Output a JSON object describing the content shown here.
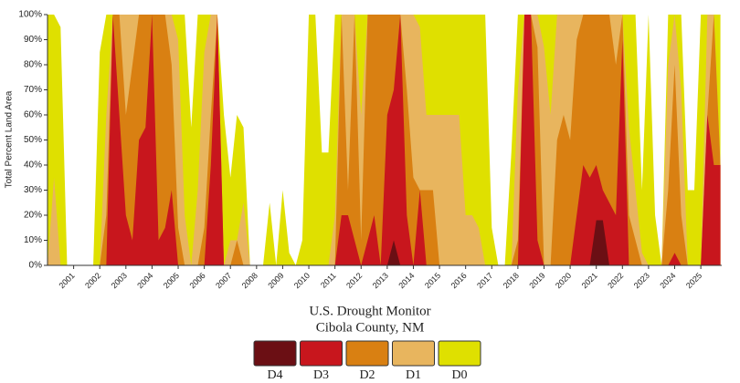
{
  "chart_data": {
    "type": "area",
    "title": "U.S. Drought Monitor",
    "subtitle": "Cibola County, NM",
    "y_label": "Total Percent Land Area",
    "xlim": [
      2000,
      2025.8
    ],
    "xticks": [
      2001,
      2002,
      2003,
      2004,
      2005,
      2006,
      2007,
      2008,
      2009,
      2010,
      2011,
      2012,
      2013,
      2014,
      2015,
      2016,
      2017,
      2018,
      2019,
      2020,
      2021,
      2022,
      2023,
      2024,
      2025
    ],
    "ylim": [
      0,
      100
    ],
    "yticks": [
      {
        "value": 0,
        "label": "0%"
      },
      {
        "value": 10,
        "label": "10%"
      },
      {
        "value": 20,
        "label": "20%"
      },
      {
        "value": 30,
        "label": "30%"
      },
      {
        "value": 40,
        "label": "40%"
      },
      {
        "value": 50,
        "label": "50%"
      },
      {
        "value": 60,
        "label": "60%"
      },
      {
        "value": 70,
        "label": "70%"
      },
      {
        "value": 80,
        "label": "80%"
      },
      {
        "value": 90,
        "label": "90%"
      },
      {
        "value": 100,
        "label": "100%"
      }
    ],
    "x": [
      2000,
      2000.25,
      2000.5,
      2000.75,
      2001,
      2001.25,
      2001.5,
      2001.75,
      2002,
      2002.25,
      2002.5,
      2002.75,
      2003,
      2003.25,
      2003.5,
      2003.75,
      2004,
      2004.25,
      2004.5,
      2004.75,
      2005,
      2005.25,
      2005.5,
      2005.75,
      2006,
      2006.25,
      2006.5,
      2006.75,
      2007,
      2007.25,
      2007.5,
      2007.75,
      2008,
      2008.25,
      2008.5,
      2008.75,
      2009,
      2009.25,
      2009.5,
      2009.75,
      2010,
      2010.25,
      2010.5,
      2010.75,
      2011,
      2011.25,
      2011.5,
      2011.75,
      2012,
      2012.25,
      2012.5,
      2012.75,
      2013,
      2013.25,
      2013.5,
      2013.75,
      2014,
      2014.25,
      2014.5,
      2014.75,
      2015,
      2015.25,
      2015.5,
      2015.75,
      2016,
      2016.25,
      2016.5,
      2016.75,
      2017,
      2017.25,
      2017.5,
      2017.75,
      2018,
      2018.25,
      2018.5,
      2018.75,
      2019,
      2019.25,
      2019.5,
      2019.75,
      2020,
      2020.25,
      2020.5,
      2020.75,
      2021,
      2021.25,
      2021.5,
      2021.75,
      2022,
      2022.25,
      2022.5,
      2022.75,
      2023,
      2023.25,
      2023.5,
      2023.75,
      2024,
      2024.25,
      2024.5,
      2024.75,
      2025,
      2025.25,
      2025.5,
      2025.75
    ],
    "series": [
      {
        "name": "D4",
        "color": "#6b0f14",
        "values": [
          0,
          0,
          0,
          0,
          0,
          0,
          0,
          0,
          0,
          0,
          0,
          0,
          0,
          0,
          0,
          0,
          0,
          0,
          0,
          0,
          0,
          0,
          0,
          0,
          0,
          0,
          0,
          0,
          0,
          0,
          0,
          0,
          0,
          0,
          0,
          0,
          0,
          0,
          0,
          0,
          0,
          0,
          0,
          0,
          0,
          0,
          0,
          0,
          0,
          0,
          0,
          0,
          0,
          10,
          0,
          0,
          0,
          0,
          0,
          0,
          0,
          0,
          0,
          0,
          0,
          0,
          0,
          0,
          0,
          0,
          0,
          0,
          0,
          0,
          0,
          0,
          0,
          0,
          0,
          0,
          0,
          0,
          0,
          0,
          18,
          18,
          0,
          0,
          0,
          0,
          0,
          0,
          0,
          0,
          0,
          0,
          0,
          0,
          0,
          0,
          0,
          0,
          0,
          0
        ]
      },
      {
        "name": "D3",
        "color": "#c8161d",
        "values": [
          0,
          0,
          0,
          0,
          0,
          0,
          0,
          0,
          0,
          0,
          100,
          60,
          20,
          10,
          50,
          55,
          100,
          10,
          15,
          30,
          0,
          0,
          0,
          0,
          0,
          40,
          100,
          0,
          0,
          0,
          0,
          0,
          0,
          0,
          0,
          0,
          0,
          0,
          0,
          0,
          0,
          0,
          0,
          0,
          0,
          20,
          20,
          10,
          0,
          10,
          20,
          0,
          60,
          70,
          100,
          20,
          0,
          30,
          0,
          0,
          0,
          0,
          0,
          0,
          0,
          0,
          0,
          0,
          0,
          0,
          0,
          0,
          0,
          100,
          100,
          10,
          0,
          0,
          0,
          0,
          0,
          20,
          40,
          35,
          40,
          30,
          25,
          20,
          90,
          0,
          0,
          0,
          0,
          0,
          0,
          0,
          5,
          0,
          0,
          0,
          0,
          60,
          40,
          40
        ]
      },
      {
        "name": "D2",
        "color": "#d98012",
        "values": [
          0,
          0,
          0,
          0,
          0,
          0,
          0,
          0,
          0,
          20,
          100,
          100,
          60,
          80,
          100,
          100,
          100,
          100,
          100,
          80,
          15,
          0,
          0,
          0,
          15,
          60,
          100,
          0,
          0,
          10,
          0,
          0,
          0,
          0,
          0,
          0,
          0,
          0,
          0,
          0,
          0,
          0,
          0,
          0,
          0,
          100,
          30,
          100,
          10,
          100,
          100,
          100,
          100,
          100,
          100,
          70,
          35,
          30,
          30,
          30,
          0,
          0,
          0,
          0,
          0,
          0,
          0,
          0,
          0,
          0,
          0,
          0,
          10,
          100,
          100,
          87,
          0,
          0,
          50,
          60,
          50,
          90,
          100,
          100,
          100,
          100,
          100,
          80,
          100,
          20,
          10,
          0,
          0,
          0,
          0,
          30,
          80,
          20,
          0,
          0,
          0,
          60,
          100,
          40
        ]
      },
      {
        "name": "D1",
        "color": "#e8b55e",
        "values": [
          0,
          35,
          0,
          0,
          0,
          0,
          0,
          0,
          0,
          60,
          100,
          100,
          100,
          100,
          100,
          100,
          100,
          100,
          100,
          100,
          90,
          20,
          0,
          30,
          85,
          100,
          100,
          0,
          10,
          10,
          25,
          0,
          0,
          0,
          0,
          0,
          0,
          0,
          0,
          0,
          0,
          0,
          0,
          0,
          20,
          100,
          100,
          100,
          60,
          100,
          100,
          100,
          100,
          100,
          100,
          100,
          100,
          95,
          60,
          60,
          60,
          60,
          60,
          60,
          20,
          20,
          15,
          0,
          0,
          0,
          0,
          0,
          70,
          100,
          100,
          100,
          87,
          60,
          100,
          100,
          100,
          100,
          100,
          100,
          100,
          100,
          100,
          100,
          100,
          55,
          30,
          5,
          0,
          0,
          0,
          80,
          100,
          70,
          0,
          0,
          0,
          100,
          100,
          40
        ]
      },
      {
        "name": "D0",
        "color": "#dfe000",
        "values": [
          100,
          100,
          95,
          0,
          0,
          0,
          0,
          0,
          85,
          100,
          100,
          100,
          100,
          100,
          100,
          100,
          100,
          100,
          100,
          100,
          100,
          100,
          55,
          100,
          100,
          100,
          100,
          60,
          35,
          60,
          55,
          0,
          0,
          0,
          25,
          0,
          30,
          5,
          0,
          10,
          100,
          100,
          45,
          45,
          100,
          100,
          100,
          100,
          100,
          100,
          100,
          100,
          100,
          100,
          100,
          100,
          100,
          100,
          100,
          100,
          100,
          100,
          100,
          100,
          100,
          100,
          100,
          100,
          15,
          0,
          0,
          45,
          100,
          100,
          100,
          100,
          100,
          100,
          100,
          100,
          100,
          100,
          100,
          100,
          100,
          100,
          100,
          100,
          100,
          100,
          100,
          30,
          100,
          20,
          0,
          100,
          100,
          100,
          30,
          30,
          100,
          100,
          100,
          100
        ]
      }
    ]
  }
}
